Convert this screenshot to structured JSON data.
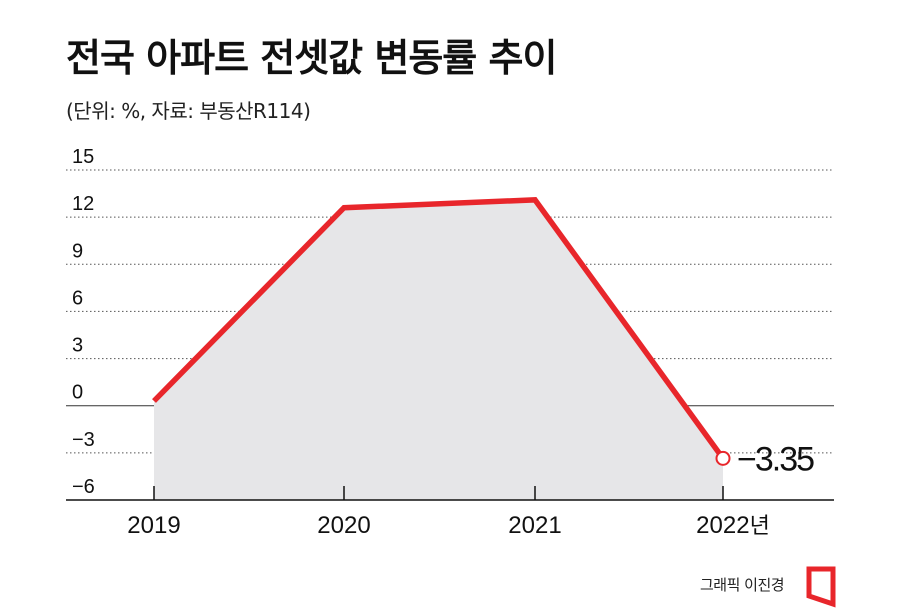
{
  "chart_data": {
    "type": "line",
    "title": "전국 아파트 전셋값 변동률 추이",
    "subtitle": "(단위: %, 자료: 부동산R114)",
    "categories": [
      "2019",
      "2020",
      "2021",
      "2022년"
    ],
    "series": [
      {
        "values": [
          0.3,
          12.6,
          13.1,
          -3.35
        ]
      }
    ],
    "y_ticks": [
      "15",
      "12",
      "9",
      "6",
      "3",
      "0",
      "−3",
      "−6"
    ],
    "ylim": [
      -6,
      15
    ],
    "y_tick_values": [
      15,
      12,
      9,
      6,
      3,
      0,
      -3,
      -6
    ],
    "grid": "dotted horizontal",
    "data_label": "−3.35",
    "colors": {
      "line": "#e8262b",
      "area": "#e6e6e8",
      "marker_fill": "#ffffff"
    }
  },
  "credit": "그래픽 이진경",
  "logo_icon": "newspaper-logo-icon"
}
